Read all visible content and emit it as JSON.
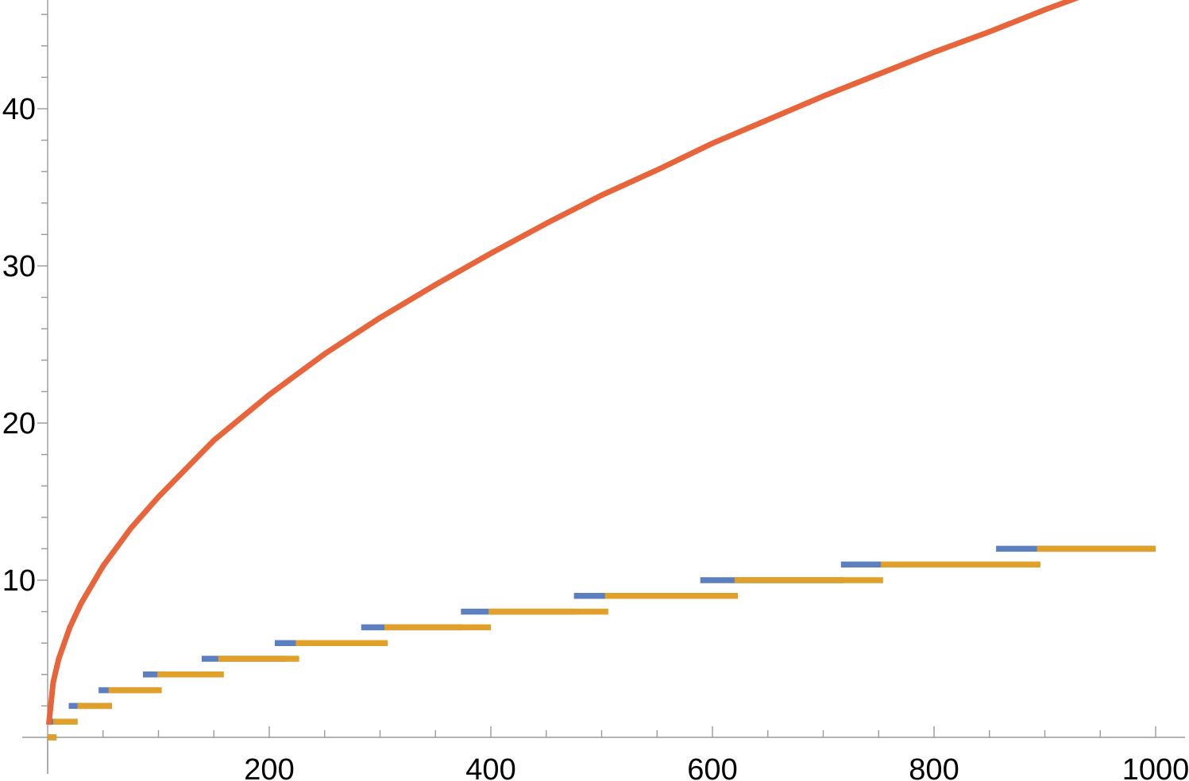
{
  "chart_data": {
    "type": "line",
    "title": "",
    "xlabel": "",
    "ylabel": "",
    "xlim": [
      0,
      1000
    ],
    "ylim": [
      0,
      46
    ],
    "grid": false,
    "legend": "none",
    "x_major_ticks": [
      200,
      400,
      600,
      800,
      1000
    ],
    "x_tick_labels": [
      "200",
      "400",
      "600",
      "800",
      "1000"
    ],
    "x_minor_step": 50,
    "y_major_ticks": [
      10,
      20,
      30,
      40
    ],
    "y_tick_labels": [
      "10",
      "20",
      "30",
      "40"
    ],
    "y_minor_step": 2,
    "series": [
      {
        "kind": "curve",
        "color": "#e8643a",
        "x": [
          1,
          5,
          10,
          20,
          30,
          50,
          75,
          100,
          150,
          200,
          250,
          300,
          350,
          400,
          450,
          500,
          550,
          600,
          650,
          700,
          750,
          800,
          850,
          900,
          950,
          1000
        ],
        "y": [
          0.8,
          3.5,
          5.0,
          7.0,
          8.5,
          10.9,
          13.3,
          15.3,
          18.9,
          21.8,
          24.4,
          26.7,
          28.8,
          30.8,
          32.7,
          34.5,
          36.1,
          37.8,
          39.3,
          40.8,
          42.2,
          43.6,
          44.9,
          46.3,
          47.6,
          48.9
        ]
      },
      {
        "kind": "steps",
        "color": "#5b7fbf",
        "segments": [
          {
            "y": 0,
            "x_start": 0,
            "x_end": 8
          },
          {
            "y": 1,
            "x_start": 3,
            "x_end": 27
          },
          {
            "y": 2,
            "x_start": 19,
            "x_end": 58
          },
          {
            "y": 3,
            "x_start": 46,
            "x_end": 100
          },
          {
            "y": 4,
            "x_start": 86,
            "x_end": 152
          },
          {
            "y": 5,
            "x_start": 139,
            "x_end": 215
          },
          {
            "y": 6,
            "x_start": 205,
            "x_end": 289
          },
          {
            "y": 7,
            "x_start": 283,
            "x_end": 374
          },
          {
            "y": 8,
            "x_start": 373,
            "x_end": 477
          },
          {
            "y": 9,
            "x_start": 475,
            "x_end": 592
          },
          {
            "y": 10,
            "x_start": 589,
            "x_end": 718
          },
          {
            "y": 11,
            "x_start": 716,
            "x_end": 858
          },
          {
            "y": 12,
            "x_start": 856,
            "x_end": 1000
          }
        ]
      },
      {
        "kind": "steps",
        "color": "#e0a02a",
        "segments": [
          {
            "y": 0,
            "x_start": 0,
            "x_end": 8
          },
          {
            "y": 1,
            "x_start": 5,
            "x_end": 27
          },
          {
            "y": 2,
            "x_start": 27,
            "x_end": 58
          },
          {
            "y": 3,
            "x_start": 55,
            "x_end": 103
          },
          {
            "y": 4,
            "x_start": 99,
            "x_end": 159
          },
          {
            "y": 5,
            "x_start": 154,
            "x_end": 227
          },
          {
            "y": 6,
            "x_start": 224,
            "x_end": 307
          },
          {
            "y": 7,
            "x_start": 304,
            "x_end": 400
          },
          {
            "y": 8,
            "x_start": 398,
            "x_end": 506
          },
          {
            "y": 9,
            "x_start": 503,
            "x_end": 623
          },
          {
            "y": 10,
            "x_start": 620,
            "x_end": 754
          },
          {
            "y": 11,
            "x_start": 752,
            "x_end": 896
          },
          {
            "y": 12,
            "x_start": 893,
            "x_end": 1000
          }
        ]
      }
    ]
  }
}
